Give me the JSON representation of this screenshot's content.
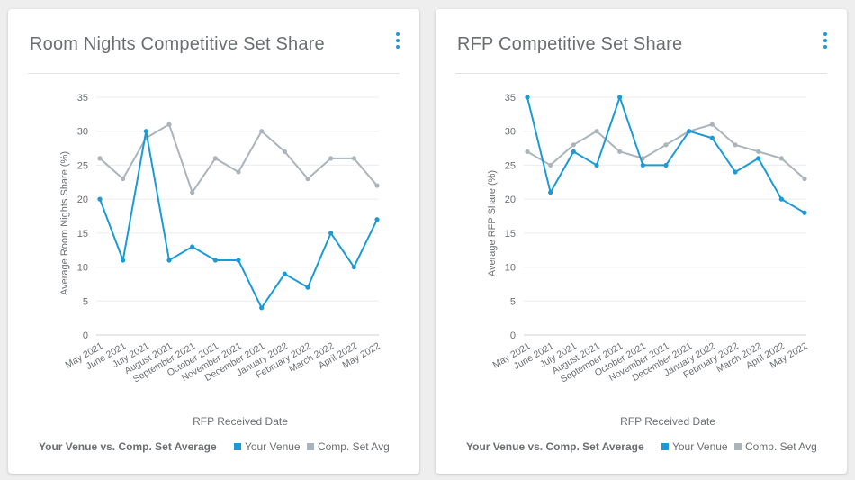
{
  "cards": [
    {
      "title": "Room Nights Competitive Set Share",
      "legend_title": "Your Venue vs. Comp. Set Average"
    },
    {
      "title": "RFP Competitive Set Share",
      "legend_title": "Your Venue vs. Comp. Set Average"
    }
  ],
  "colors": {
    "your_venue": "#1a9bd7",
    "comp_set": "#a9b4bd"
  },
  "chart_data": [
    {
      "type": "line",
      "xlabel": "RFP Received Date",
      "ylabel": "Average Room Nights Share (%)",
      "ylim": [
        0,
        35
      ],
      "yticks": [
        0,
        5,
        10,
        15,
        20,
        25,
        30,
        35
      ],
      "grid": true,
      "legend": "bottom",
      "categories": [
        "May 2021",
        "June 2021",
        "July 2021",
        "August 2021",
        "September 2021",
        "October 2021",
        "November 2021",
        "December 2021",
        "January 2022",
        "February 2022",
        "March 2022",
        "April 2022",
        "May 2022"
      ],
      "series": [
        {
          "name": "Your Venue",
          "color": "#1a9bd7",
          "values": [
            20,
            11,
            30,
            11,
            13,
            11,
            11,
            4,
            9,
            7,
            15,
            10,
            17
          ]
        },
        {
          "name": "Comp. Set Avg",
          "color": "#a9b4bd",
          "values": [
            26,
            23,
            29,
            31,
            21,
            26,
            24,
            30,
            27,
            23,
            26,
            26,
            22
          ]
        }
      ]
    },
    {
      "type": "line",
      "xlabel": "RFP Received Date",
      "ylabel": "Average RFP Share (%)",
      "ylim": [
        0,
        35
      ],
      "yticks": [
        0,
        5,
        10,
        15,
        20,
        25,
        30,
        35
      ],
      "grid": true,
      "legend": "bottom",
      "categories": [
        "May 2021",
        "June 2021",
        "July 2021",
        "August 2021",
        "September 2021",
        "October 2021",
        "November 2021",
        "December 2021",
        "January 2022",
        "February 2022",
        "March 2022",
        "April 2022",
        "May 2022"
      ],
      "series": [
        {
          "name": "Your Venue",
          "color": "#1a9bd7",
          "values": [
            35,
            21,
            27,
            25,
            35,
            25,
            25,
            30,
            29,
            24,
            26,
            20,
            18
          ]
        },
        {
          "name": "Comp. Set Avg",
          "color": "#a9b4bd",
          "values": [
            27,
            25,
            28,
            30,
            27,
            26,
            28,
            30,
            31,
            28,
            27,
            26,
            23
          ]
        }
      ]
    }
  ]
}
